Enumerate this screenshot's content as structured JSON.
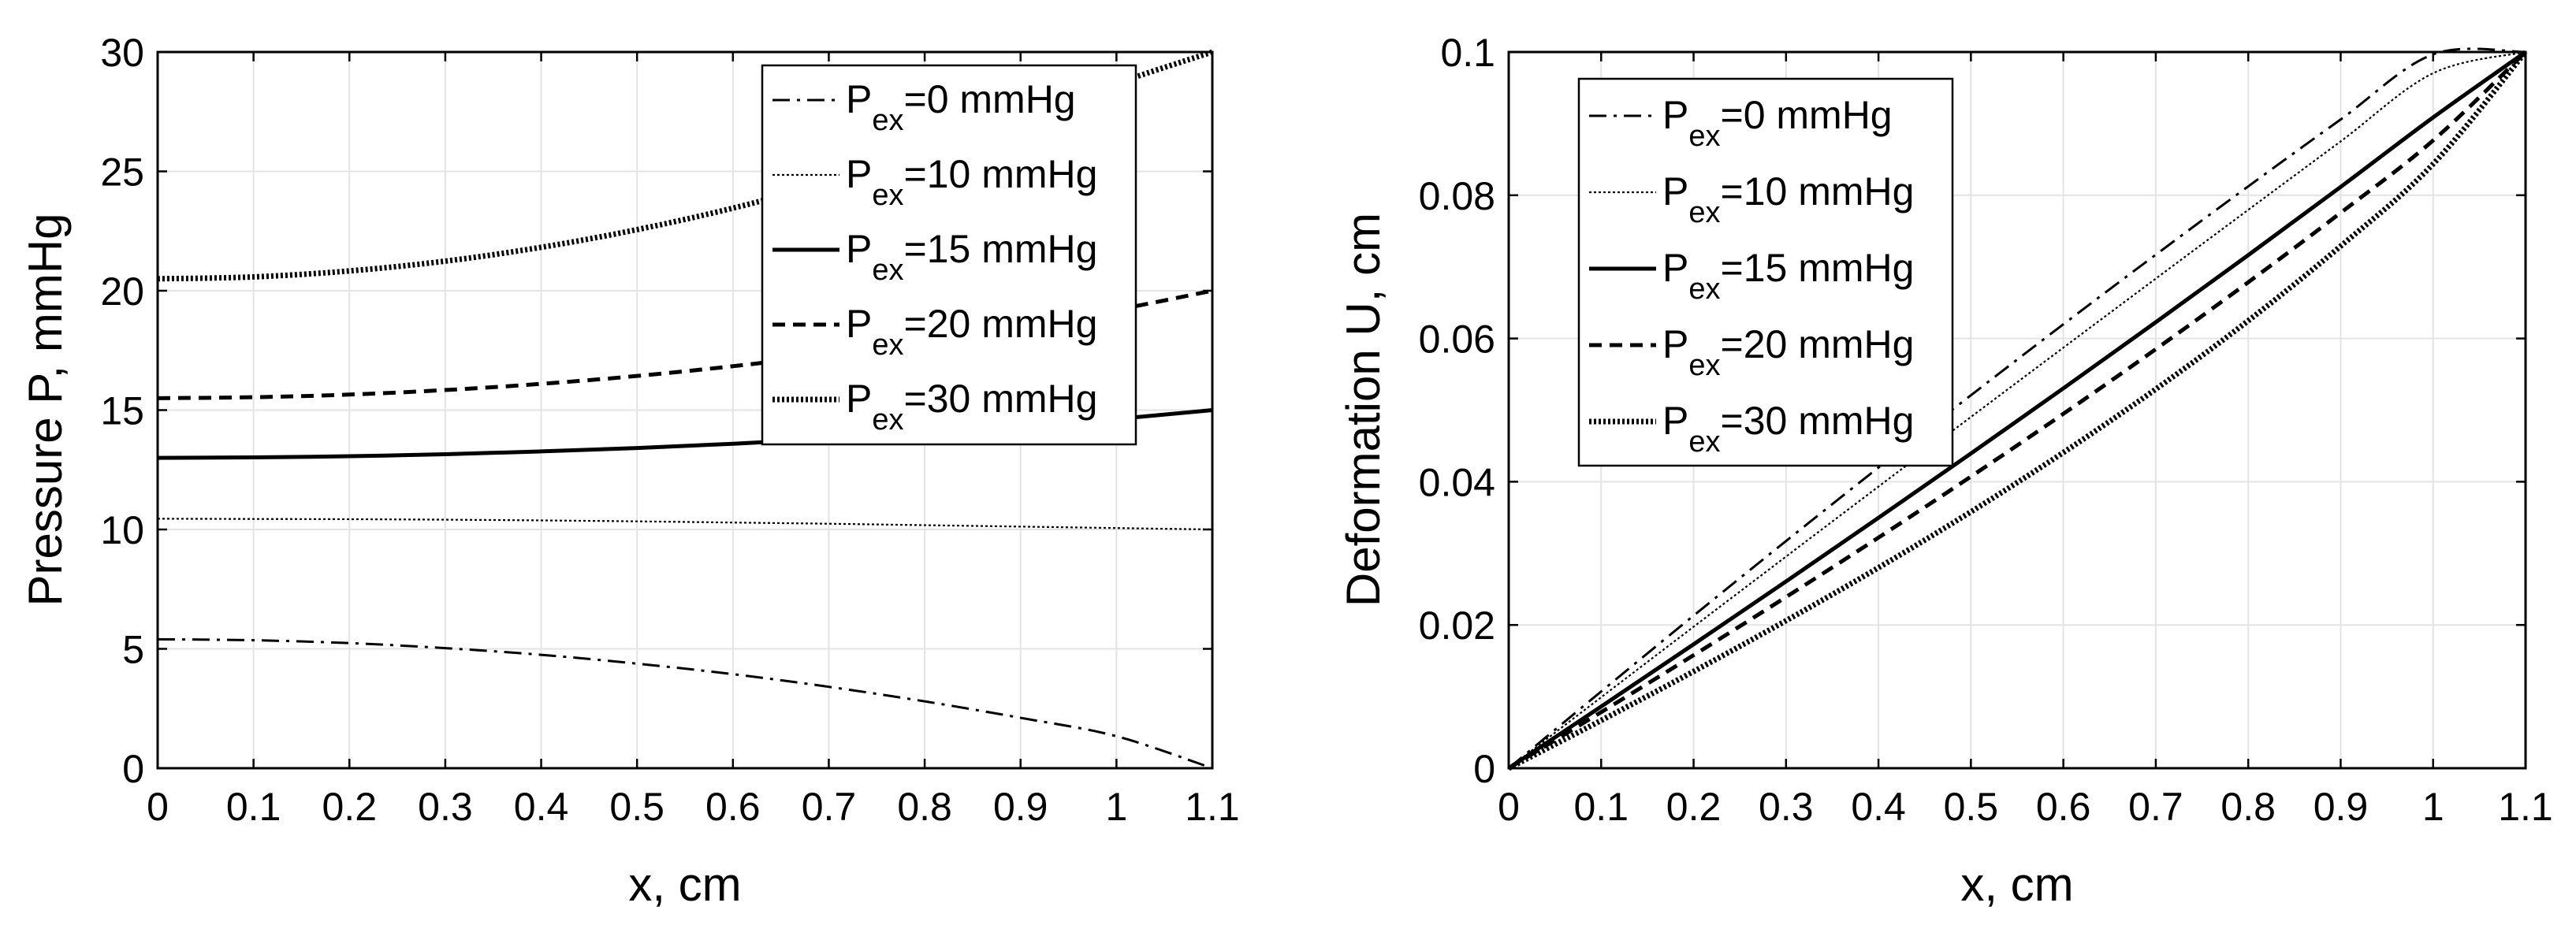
{
  "chart_data": [
    {
      "type": "line",
      "title": "",
      "xlabel": "x, cm",
      "ylabel": "Pressure P, mmHg",
      "xlim": [
        0,
        1.1
      ],
      "ylim": [
        0,
        30
      ],
      "xticks": [
        0,
        0.1,
        0.2,
        0.3,
        0.4,
        0.5,
        0.6,
        0.7,
        0.8,
        0.9,
        1,
        1.1
      ],
      "xtick_labels": [
        "0",
        "0.1",
        "0.2",
        "0.3",
        "0.4",
        "0.5",
        "0.6",
        "0.7",
        "0.8",
        "0.9",
        "1",
        "1.1"
      ],
      "yticks": [
        0,
        5,
        10,
        15,
        20,
        25,
        30
      ],
      "ytick_labels": [
        "0",
        "5",
        "10",
        "15",
        "20",
        "25",
        "30"
      ],
      "grid": true,
      "legend_position": "top-right",
      "x": [
        0,
        0.1,
        0.2,
        0.3,
        0.4,
        0.5,
        0.6,
        0.7,
        0.8,
        0.9,
        1.0,
        1.1
      ],
      "series": [
        {
          "name": "P_ex=0 mmHg",
          "label_main": "P",
          "label_sub": "ex",
          "label_rest": "=0 mmHg",
          "style": "dashdot",
          "values": [
            5.4,
            5.36,
            5.24,
            5.03,
            4.75,
            4.38,
            3.94,
            3.41,
            2.8,
            2.11,
            1.34,
            0.0
          ]
        },
        {
          "name": "P_ex=10 mmHg",
          "label_main": "P",
          "label_sub": "ex",
          "label_rest": "=10 mmHg",
          "style": "dotted-thin",
          "values": [
            10.45,
            10.44,
            10.43,
            10.41,
            10.38,
            10.34,
            10.29,
            10.24,
            10.18,
            10.12,
            10.06,
            10.0
          ]
        },
        {
          "name": "P_ex=15 mmHg",
          "label_main": "P",
          "label_sub": "ex",
          "label_rest": "=15 mmHg",
          "style": "solid",
          "values": [
            13.0,
            13.02,
            13.07,
            13.15,
            13.27,
            13.41,
            13.59,
            13.8,
            14.04,
            14.31,
            14.63,
            15.0
          ]
        },
        {
          "name": "P_ex=20 mmHg",
          "label_main": "P",
          "label_sub": "ex",
          "label_rest": "=20 mmHg",
          "style": "dashed",
          "values": [
            15.5,
            15.54,
            15.65,
            15.84,
            16.1,
            16.43,
            16.84,
            17.32,
            17.87,
            18.5,
            19.2,
            20.0
          ]
        },
        {
          "name": "P_ex=30 mmHg",
          "label_main": "P",
          "label_sub": "ex",
          "label_rest": "=30 mmHg",
          "style": "dotted-thick",
          "values": [
            20.5,
            20.58,
            20.83,
            21.24,
            21.82,
            22.56,
            23.46,
            24.53,
            25.77,
            27.17,
            28.68,
            30.0
          ]
        }
      ]
    },
    {
      "type": "line",
      "title": "",
      "xlabel": "x, cm",
      "ylabel": "Deformation U, cm",
      "xlim": [
        0,
        1.1
      ],
      "ylim": [
        0,
        0.1
      ],
      "xticks": [
        0,
        0.1,
        0.2,
        0.3,
        0.4,
        0.5,
        0.6,
        0.7,
        0.8,
        0.9,
        1,
        1.1
      ],
      "xtick_labels": [
        "0",
        "0.1",
        "0.2",
        "0.3",
        "0.4",
        "0.5",
        "0.6",
        "0.7",
        "0.8",
        "0.9",
        "1",
        "1.1"
      ],
      "yticks": [
        0,
        0.02,
        0.04,
        0.06,
        0.08,
        0.1
      ],
      "ytick_labels": [
        "0",
        "0.02",
        "0.04",
        "0.06",
        "0.08",
        "0.1"
      ],
      "grid": true,
      "legend_position": "top-left",
      "x": [
        0,
        0.1,
        0.2,
        0.3,
        0.4,
        0.5,
        0.6,
        0.7,
        0.8,
        0.9,
        1.0,
        1.1
      ],
      "series": [
        {
          "name": "P_ex=0 mmHg",
          "label_main": "P",
          "label_sub": "ex",
          "label_rest": "=0 mmHg",
          "style": "dashdot",
          "values": [
            0.0,
            0.01071,
            0.0213,
            0.03172,
            0.04198,
            0.05207,
            0.06198,
            0.0717,
            0.08124,
            0.09058,
            0.09967,
            0.1
          ]
        },
        {
          "name": "P_ex=10 mmHg",
          "label_main": "P",
          "label_sub": "ex",
          "label_rest": "=10 mmHg",
          "style": "dotted-thin",
          "values": [
            0.0,
            0.0099,
            0.01975,
            0.02955,
            0.03932,
            0.04904,
            0.05872,
            0.06836,
            0.07796,
            0.08752,
            0.09704,
            0.1
          ]
        },
        {
          "name": "P_ex=15 mmHg",
          "label_main": "P",
          "label_sub": "ex",
          "label_rest": "=15 mmHg",
          "style": "solid",
          "values": [
            0.0,
            0.00861,
            0.0173,
            0.02608,
            0.03496,
            0.04394,
            0.05304,
            0.06227,
            0.07164,
            0.08116,
            0.09086,
            0.1
          ]
        },
        {
          "name": "P_ex=20 mmHg",
          "label_main": "P",
          "label_sub": "ex",
          "label_rest": "=20 mmHg",
          "style": "dashed",
          "values": [
            0.0,
            0.00783,
            0.01578,
            0.0239,
            0.0322,
            0.04072,
            0.04948,
            0.05851,
            0.06785,
            0.07755,
            0.08765,
            0.1
          ]
        },
        {
          "name": "P_ex=30 mmHg",
          "label_main": "P",
          "label_sub": "ex",
          "label_rest": "=30 mmHg",
          "style": "dotted-thick",
          "values": [
            0.0,
            0.00667,
            0.01351,
            0.0206,
            0.028,
            0.0358,
            0.04408,
            0.05293,
            0.06248,
            0.0729,
            0.08436,
            0.1
          ]
        }
      ]
    }
  ]
}
